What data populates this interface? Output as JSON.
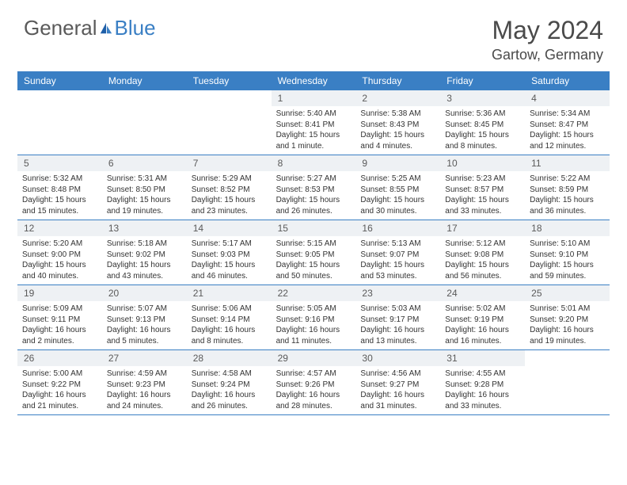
{
  "brand": {
    "general": "General",
    "blue": "Blue"
  },
  "title": {
    "month_year": "May 2024",
    "location": "Gartow, Germany"
  },
  "colors": {
    "header_bg": "#3a7fc4",
    "daynum_bg": "#eef1f4",
    "text_dark": "#4a4a4a",
    "text_body": "#333333",
    "logo_gray": "#5a5a5a",
    "logo_blue": "#3a7fc4"
  },
  "weekdays": [
    "Sunday",
    "Monday",
    "Tuesday",
    "Wednesday",
    "Thursday",
    "Friday",
    "Saturday"
  ],
  "weeks": [
    [
      {
        "n": "",
        "sr": "",
        "ss": "",
        "dl": ""
      },
      {
        "n": "",
        "sr": "",
        "ss": "",
        "dl": ""
      },
      {
        "n": "",
        "sr": "",
        "ss": "",
        "dl": ""
      },
      {
        "n": "1",
        "sr": "Sunrise: 5:40 AM",
        "ss": "Sunset: 8:41 PM",
        "dl": "Daylight: 15 hours and 1 minute."
      },
      {
        "n": "2",
        "sr": "Sunrise: 5:38 AM",
        "ss": "Sunset: 8:43 PM",
        "dl": "Daylight: 15 hours and 4 minutes."
      },
      {
        "n": "3",
        "sr": "Sunrise: 5:36 AM",
        "ss": "Sunset: 8:45 PM",
        "dl": "Daylight: 15 hours and 8 minutes."
      },
      {
        "n": "4",
        "sr": "Sunrise: 5:34 AM",
        "ss": "Sunset: 8:47 PM",
        "dl": "Daylight: 15 hours and 12 minutes."
      }
    ],
    [
      {
        "n": "5",
        "sr": "Sunrise: 5:32 AM",
        "ss": "Sunset: 8:48 PM",
        "dl": "Daylight: 15 hours and 15 minutes."
      },
      {
        "n": "6",
        "sr": "Sunrise: 5:31 AM",
        "ss": "Sunset: 8:50 PM",
        "dl": "Daylight: 15 hours and 19 minutes."
      },
      {
        "n": "7",
        "sr": "Sunrise: 5:29 AM",
        "ss": "Sunset: 8:52 PM",
        "dl": "Daylight: 15 hours and 23 minutes."
      },
      {
        "n": "8",
        "sr": "Sunrise: 5:27 AM",
        "ss": "Sunset: 8:53 PM",
        "dl": "Daylight: 15 hours and 26 minutes."
      },
      {
        "n": "9",
        "sr": "Sunrise: 5:25 AM",
        "ss": "Sunset: 8:55 PM",
        "dl": "Daylight: 15 hours and 30 minutes."
      },
      {
        "n": "10",
        "sr": "Sunrise: 5:23 AM",
        "ss": "Sunset: 8:57 PM",
        "dl": "Daylight: 15 hours and 33 minutes."
      },
      {
        "n": "11",
        "sr": "Sunrise: 5:22 AM",
        "ss": "Sunset: 8:59 PM",
        "dl": "Daylight: 15 hours and 36 minutes."
      }
    ],
    [
      {
        "n": "12",
        "sr": "Sunrise: 5:20 AM",
        "ss": "Sunset: 9:00 PM",
        "dl": "Daylight: 15 hours and 40 minutes."
      },
      {
        "n": "13",
        "sr": "Sunrise: 5:18 AM",
        "ss": "Sunset: 9:02 PM",
        "dl": "Daylight: 15 hours and 43 minutes."
      },
      {
        "n": "14",
        "sr": "Sunrise: 5:17 AM",
        "ss": "Sunset: 9:03 PM",
        "dl": "Daylight: 15 hours and 46 minutes."
      },
      {
        "n": "15",
        "sr": "Sunrise: 5:15 AM",
        "ss": "Sunset: 9:05 PM",
        "dl": "Daylight: 15 hours and 50 minutes."
      },
      {
        "n": "16",
        "sr": "Sunrise: 5:13 AM",
        "ss": "Sunset: 9:07 PM",
        "dl": "Daylight: 15 hours and 53 minutes."
      },
      {
        "n": "17",
        "sr": "Sunrise: 5:12 AM",
        "ss": "Sunset: 9:08 PM",
        "dl": "Daylight: 15 hours and 56 minutes."
      },
      {
        "n": "18",
        "sr": "Sunrise: 5:10 AM",
        "ss": "Sunset: 9:10 PM",
        "dl": "Daylight: 15 hours and 59 minutes."
      }
    ],
    [
      {
        "n": "19",
        "sr": "Sunrise: 5:09 AM",
        "ss": "Sunset: 9:11 PM",
        "dl": "Daylight: 16 hours and 2 minutes."
      },
      {
        "n": "20",
        "sr": "Sunrise: 5:07 AM",
        "ss": "Sunset: 9:13 PM",
        "dl": "Daylight: 16 hours and 5 minutes."
      },
      {
        "n": "21",
        "sr": "Sunrise: 5:06 AM",
        "ss": "Sunset: 9:14 PM",
        "dl": "Daylight: 16 hours and 8 minutes."
      },
      {
        "n": "22",
        "sr": "Sunrise: 5:05 AM",
        "ss": "Sunset: 9:16 PM",
        "dl": "Daylight: 16 hours and 11 minutes."
      },
      {
        "n": "23",
        "sr": "Sunrise: 5:03 AM",
        "ss": "Sunset: 9:17 PM",
        "dl": "Daylight: 16 hours and 13 minutes."
      },
      {
        "n": "24",
        "sr": "Sunrise: 5:02 AM",
        "ss": "Sunset: 9:19 PM",
        "dl": "Daylight: 16 hours and 16 minutes."
      },
      {
        "n": "25",
        "sr": "Sunrise: 5:01 AM",
        "ss": "Sunset: 9:20 PM",
        "dl": "Daylight: 16 hours and 19 minutes."
      }
    ],
    [
      {
        "n": "26",
        "sr": "Sunrise: 5:00 AM",
        "ss": "Sunset: 9:22 PM",
        "dl": "Daylight: 16 hours and 21 minutes."
      },
      {
        "n": "27",
        "sr": "Sunrise: 4:59 AM",
        "ss": "Sunset: 9:23 PM",
        "dl": "Daylight: 16 hours and 24 minutes."
      },
      {
        "n": "28",
        "sr": "Sunrise: 4:58 AM",
        "ss": "Sunset: 9:24 PM",
        "dl": "Daylight: 16 hours and 26 minutes."
      },
      {
        "n": "29",
        "sr": "Sunrise: 4:57 AM",
        "ss": "Sunset: 9:26 PM",
        "dl": "Daylight: 16 hours and 28 minutes."
      },
      {
        "n": "30",
        "sr": "Sunrise: 4:56 AM",
        "ss": "Sunset: 9:27 PM",
        "dl": "Daylight: 16 hours and 31 minutes."
      },
      {
        "n": "31",
        "sr": "Sunrise: 4:55 AM",
        "ss": "Sunset: 9:28 PM",
        "dl": "Daylight: 16 hours and 33 minutes."
      },
      {
        "n": "",
        "sr": "",
        "ss": "",
        "dl": ""
      }
    ]
  ]
}
